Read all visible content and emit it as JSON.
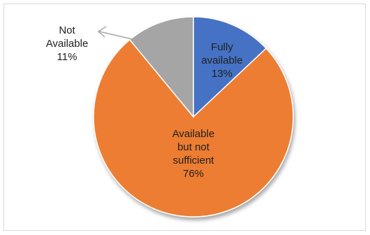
{
  "chart_data": {
    "type": "pie",
    "title": "",
    "slices": [
      {
        "label_lines": [
          "Fully",
          "available"
        ],
        "percent_label": "13%",
        "value": 13,
        "color": "#4472c4"
      },
      {
        "label_lines": [
          "Available",
          "but not",
          "sufficient"
        ],
        "percent_label": "76%",
        "value": 76,
        "color": "#ed7d31"
      },
      {
        "label_lines": [
          "Not",
          "Available"
        ],
        "percent_label": "11%",
        "value": 11,
        "color": "#a5a5a5"
      }
    ],
    "legend": "none",
    "data_labels": "inside (Not Available outside with leader arrow)"
  }
}
